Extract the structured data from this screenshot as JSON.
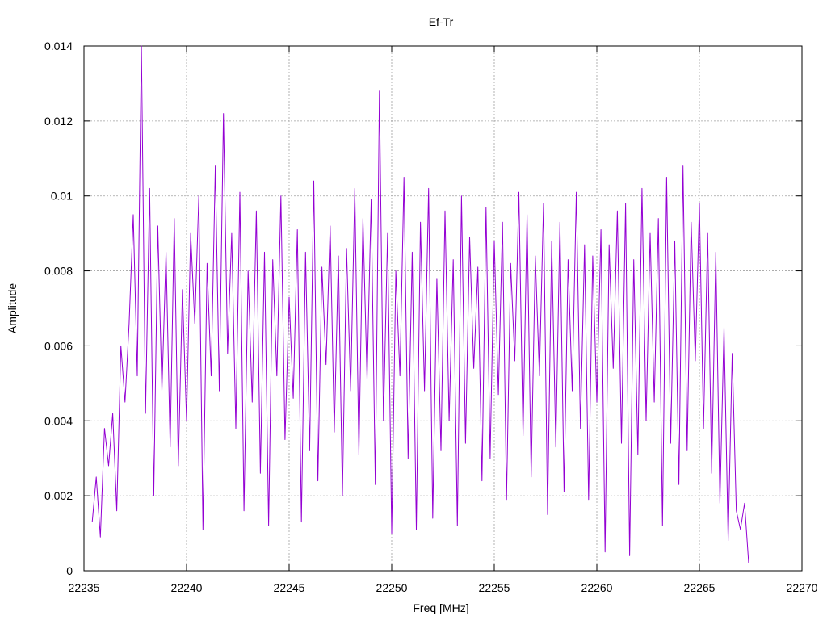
{
  "chart_data": {
    "type": "line",
    "title": "Ef-Tr",
    "xlabel": "Freq [MHz]",
    "ylabel": "Amplitude",
    "xlim": [
      22235,
      22270
    ],
    "ylim": [
      0,
      0.014
    ],
    "x_ticks": [
      "22235",
      "22240",
      "22245",
      "22250",
      "22255",
      "22260",
      "22265",
      "22270"
    ],
    "y_ticks": [
      "0",
      "0.002",
      "0.004",
      "0.006",
      "0.008",
      "0.01",
      "0.012",
      "0.014"
    ],
    "grid": true,
    "line_color": "#9400d3",
    "series": [
      {
        "x": [
          22235.4,
          22235.6,
          22235.8,
          22236.0,
          22236.2,
          22236.4,
          22236.6,
          22236.8,
          22237.0,
          22237.2,
          22237.4,
          22237.6,
          22237.8,
          22238.0,
          22238.2,
          22238.4,
          22238.6,
          22238.8,
          22239.0,
          22239.2,
          22239.4,
          22239.6,
          22239.8,
          22240.0,
          22240.2,
          22240.4,
          22240.6,
          22240.8,
          22241.0,
          22241.2,
          22241.4,
          22241.6,
          22241.8,
          22242.0,
          22242.2,
          22242.4,
          22242.6,
          22242.8,
          22243.0,
          22243.2,
          22243.4,
          22243.6,
          22243.8,
          22244.0,
          22244.2,
          22244.4,
          22244.6,
          22244.8,
          22245.0,
          22245.2,
          22245.4,
          22245.6,
          22245.8,
          22246.0,
          22246.2,
          22246.4,
          22246.6,
          22246.8,
          22247.0,
          22247.2,
          22247.4,
          22247.6,
          22247.8,
          22248.0,
          22248.2,
          22248.4,
          22248.6,
          22248.8,
          22249.0,
          22249.2,
          22249.4,
          22249.6,
          22249.8,
          22250.0,
          22250.2,
          22250.4,
          22250.6,
          22250.8,
          22251.0,
          22251.2,
          22251.4,
          22251.6,
          22251.8,
          22252.0,
          22252.2,
          22252.4,
          22252.6,
          22252.8,
          22253.0,
          22253.2,
          22253.4,
          22253.6,
          22253.8,
          22254.0,
          22254.2,
          22254.4,
          22254.6,
          22254.8,
          22255.0,
          22255.2,
          22255.4,
          22255.6,
          22255.8,
          22256.0,
          22256.2,
          22256.4,
          22256.6,
          22256.8,
          22257.0,
          22257.2,
          22257.4,
          22257.6,
          22257.8,
          22258.0,
          22258.2,
          22258.4,
          22258.6,
          22258.8,
          22259.0,
          22259.2,
          22259.4,
          22259.6,
          22259.8,
          22260.0,
          22260.2,
          22260.4,
          22260.6,
          22260.8,
          22261.0,
          22261.2,
          22261.4,
          22261.6,
          22261.8,
          22262.0,
          22262.2,
          22262.4,
          22262.6,
          22262.8,
          22263.0,
          22263.2,
          22263.4,
          22263.6,
          22263.8,
          22264.0,
          22264.2,
          22264.4,
          22264.6,
          22264.8,
          22265.0,
          22265.2,
          22265.4,
          22265.6,
          22265.8,
          22266.0,
          22266.2,
          22266.4,
          22266.6,
          22266.8,
          22267.0,
          22267.2,
          22267.4
        ],
        "y": [
          0.0013,
          0.0025,
          0.0009,
          0.0038,
          0.0028,
          0.0042,
          0.0016,
          0.006,
          0.0045,
          0.0066,
          0.0095,
          0.0052,
          0.014,
          0.0042,
          0.0102,
          0.002,
          0.0092,
          0.0048,
          0.0085,
          0.0033,
          0.0094,
          0.0028,
          0.0075,
          0.004,
          0.009,
          0.0066,
          0.01,
          0.0011,
          0.0082,
          0.0052,
          0.0108,
          0.0048,
          0.0122,
          0.0058,
          0.009,
          0.0038,
          0.0101,
          0.0016,
          0.008,
          0.0045,
          0.0096,
          0.0026,
          0.0085,
          0.0012,
          0.0083,
          0.0052,
          0.01,
          0.0035,
          0.0073,
          0.0046,
          0.0091,
          0.0013,
          0.0085,
          0.0032,
          0.0104,
          0.0024,
          0.0081,
          0.0055,
          0.0092,
          0.0037,
          0.0084,
          0.002,
          0.0086,
          0.0048,
          0.0102,
          0.0031,
          0.0094,
          0.0051,
          0.0099,
          0.0023,
          0.0128,
          0.004,
          0.009,
          0.001,
          0.008,
          0.0052,
          0.0105,
          0.003,
          0.0085,
          0.0011,
          0.0093,
          0.0048,
          0.0102,
          0.0014,
          0.0078,
          0.0032,
          0.0096,
          0.004,
          0.0083,
          0.0012,
          0.01,
          0.0034,
          0.0089,
          0.0054,
          0.0081,
          0.0024,
          0.0097,
          0.003,
          0.0088,
          0.0047,
          0.0093,
          0.0019,
          0.0082,
          0.0056,
          0.0101,
          0.0036,
          0.0095,
          0.0025,
          0.0084,
          0.0052,
          0.0098,
          0.0015,
          0.0088,
          0.0033,
          0.0093,
          0.0021,
          0.0083,
          0.0048,
          0.0101,
          0.0038,
          0.0087,
          0.0019,
          0.0084,
          0.0045,
          0.0091,
          0.0005,
          0.0087,
          0.0054,
          0.0096,
          0.0034,
          0.0098,
          0.0004,
          0.0083,
          0.0031,
          0.0102,
          0.004,
          0.009,
          0.0045,
          0.0094,
          0.0012,
          0.0105,
          0.0034,
          0.0088,
          0.0023,
          0.0108,
          0.0032,
          0.0093,
          0.0056,
          0.0098,
          0.0038,
          0.009,
          0.0026,
          0.0085,
          0.0018,
          0.0065,
          0.0008,
          0.0058,
          0.0016,
          0.0011,
          0.0018,
          0.0002
        ]
      }
    ]
  }
}
